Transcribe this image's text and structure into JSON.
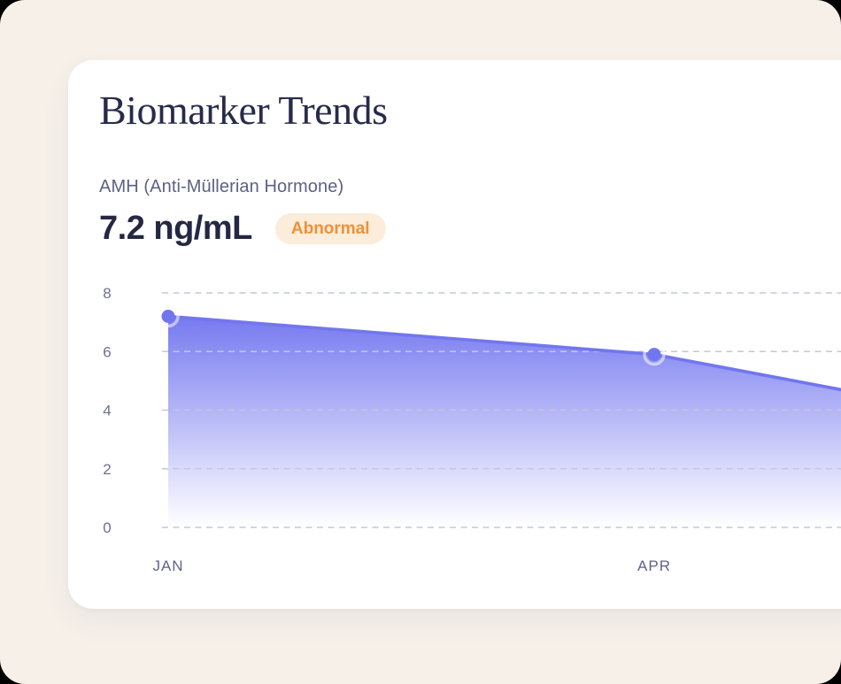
{
  "card": {
    "title": "Biomarker Trends",
    "metric": {
      "name": "AMH (Anti-Müllerian Hormone)",
      "value": "7.2 ng/mL",
      "status": "Abnormal"
    }
  },
  "colors": {
    "page_background": "#f6f0e9",
    "card_background": "#ffffff",
    "title_text": "#272b4a",
    "metric_label_text": "#5b6284",
    "metric_value_text": "#242842",
    "status_badge_text": "#ef9138",
    "status_badge_background": "#fcecda"
  },
  "chart_data": {
    "type": "area",
    "title": "Biomarker Trends",
    "series_name": "AMH (Anti-Müllerian Hormone)",
    "unit": "ng/mL",
    "current_value": 7.2,
    "current_status": "Abnormal",
    "categories_visible": [
      "JAN",
      "APR"
    ],
    "points": [
      {
        "label": "JAN",
        "month_index": 0,
        "value": 7.2
      },
      {
        "label": "APR",
        "month_index": 3,
        "value": 5.9
      }
    ],
    "right_edge_value": 4.7,
    "clipped_right": true,
    "y_axis": {
      "min": 0,
      "max": 8,
      "ticks": [
        8,
        6,
        4,
        2,
        0
      ]
    },
    "x_axis": {
      "label_style": "uppercase-month"
    },
    "grid": "horizontal-dashed",
    "legend": "none",
    "colors": {
      "line": "#7276ee",
      "marker": "#7276ee",
      "area_top": "rgba(99, 103, 238, 0.88)",
      "area_bottom": "rgba(99, 103, 238, 0)",
      "gridline": "#c3c7db"
    }
  }
}
